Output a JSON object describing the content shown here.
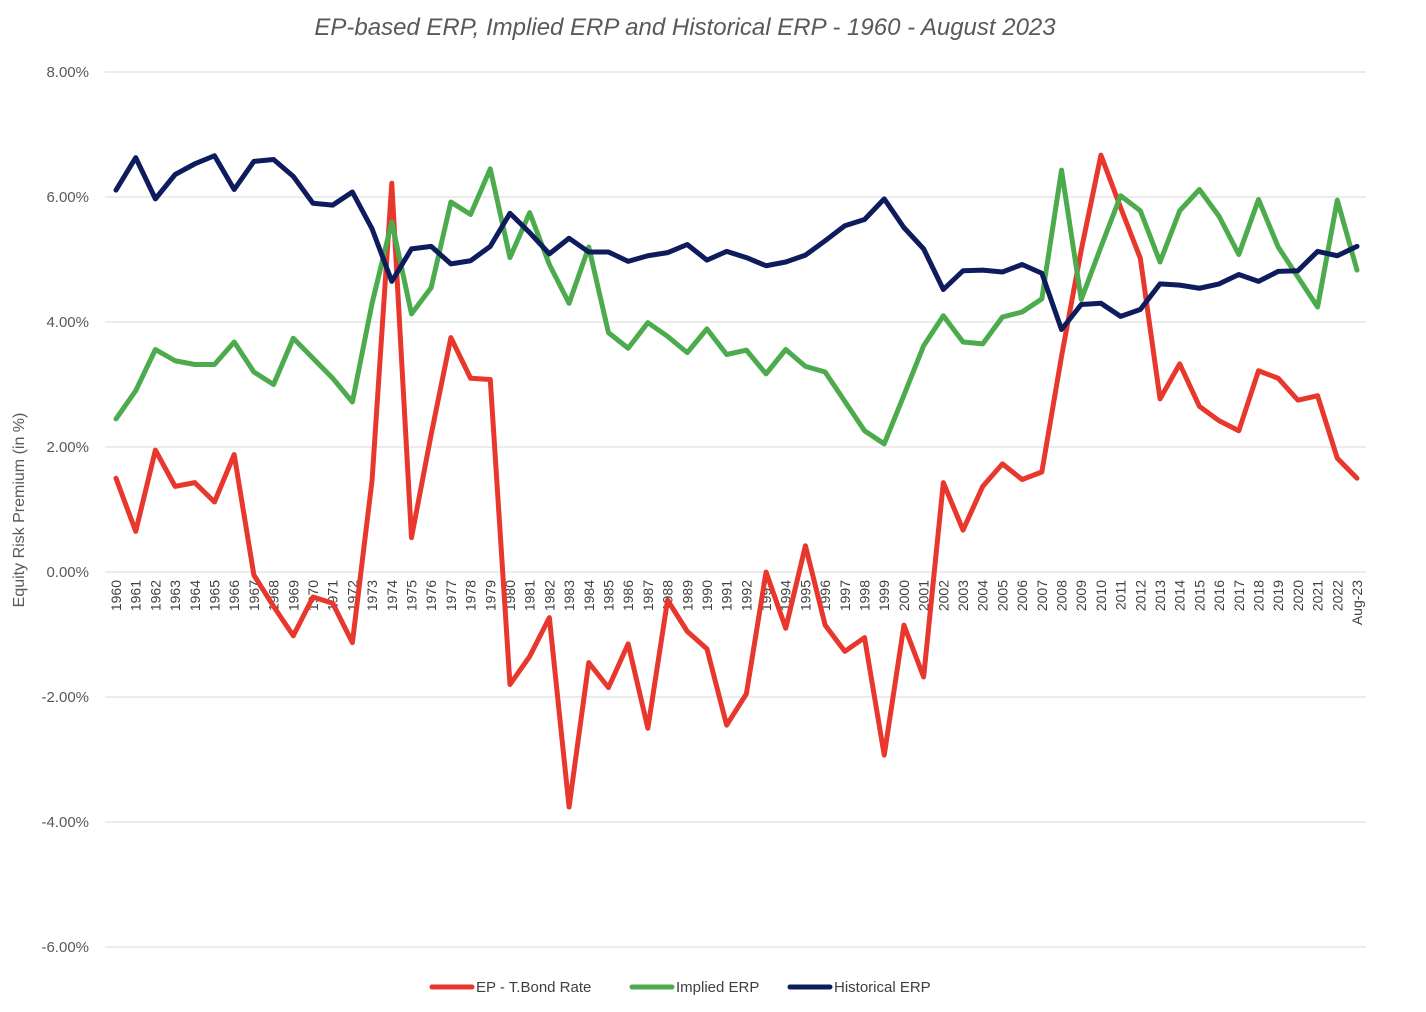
{
  "chart_data": {
    "type": "line",
    "title": "EP-based ERP, Implied ERP and Historical ERP - 1960 - August 2023",
    "ylabel": "Equity Risk Premium (in %)",
    "xlabel": "",
    "ylim": [
      -6,
      8
    ],
    "y_ticks": [
      -6,
      -4,
      -2,
      0,
      2,
      4,
      6,
      8
    ],
    "y_tick_labels": [
      "-6.00%",
      "-4.00%",
      "-2.00%",
      "0.00%",
      "2.00%",
      "4.00%",
      "6.00%",
      "8.00%"
    ],
    "grid": true,
    "legend_position": "bottom",
    "categories": [
      "1960",
      "1961",
      "1962",
      "1963",
      "1964",
      "1965",
      "1966",
      "1967",
      "1968",
      "1969",
      "1970",
      "1971",
      "1972",
      "1973",
      "1974",
      "1975",
      "1976",
      "1977",
      "1978",
      "1979",
      "1980",
      "1981",
      "1982",
      "1983",
      "1984",
      "1985",
      "1986",
      "1987",
      "1988",
      "1989",
      "1990",
      "1991",
      "1992",
      "1993",
      "1994",
      "1995",
      "1996",
      "1997",
      "1998",
      "1999",
      "2000",
      "2001",
      "2002",
      "2003",
      "2004",
      "2005",
      "2006",
      "2007",
      "2008",
      "2009",
      "2010",
      "2011",
      "2012",
      "2013",
      "2014",
      "2015",
      "2016",
      "2017",
      "2018",
      "2019",
      "2020",
      "2021",
      "2022",
      "Aug-23"
    ],
    "series": [
      {
        "name": "EP - T.Bond Rate",
        "color": "#e8372c",
        "values": [
          1.5,
          0.65,
          1.95,
          1.37,
          1.43,
          1.12,
          1.88,
          -0.05,
          -0.55,
          -1.02,
          -0.4,
          -0.5,
          -1.13,
          1.47,
          6.22,
          0.55,
          2.2,
          3.75,
          3.1,
          3.08,
          -1.8,
          -1.35,
          -0.73,
          -3.76,
          -1.45,
          -1.85,
          -1.15,
          -2.5,
          -0.45,
          -0.95,
          -1.23,
          -2.45,
          -1.95,
          0.0,
          -0.9,
          0.42,
          -0.85,
          -1.27,
          -1.05,
          -2.93,
          -0.85,
          -1.68,
          1.43,
          0.67,
          1.37,
          1.73,
          1.48,
          1.6,
          3.45,
          5.15,
          6.67,
          5.83,
          5.02,
          2.77,
          3.33,
          2.65,
          2.42,
          2.26,
          3.22,
          3.1,
          2.75,
          2.82,
          1.82,
          1.5
        ]
      },
      {
        "name": "Implied ERP",
        "color": "#4cab4c",
        "values": [
          2.45,
          2.9,
          3.56,
          3.38,
          3.32,
          3.32,
          3.68,
          3.2,
          3.0,
          3.74,
          3.42,
          3.1,
          2.72,
          4.3,
          5.6,
          4.13,
          4.55,
          5.92,
          5.72,
          6.45,
          5.03,
          5.75,
          4.92,
          4.3,
          5.2,
          3.83,
          3.58,
          3.99,
          3.77,
          3.51,
          3.89,
          3.48,
          3.55,
          3.17,
          3.56,
          3.29,
          3.2,
          2.73,
          2.26,
          2.05,
          2.83,
          3.62,
          4.1,
          3.68,
          3.65,
          4.08,
          4.16,
          4.37,
          6.43,
          4.36,
          5.2,
          6.02,
          5.78,
          4.96,
          5.78,
          6.12,
          5.69,
          5.08,
          5.96,
          5.2,
          4.72,
          4.24,
          5.95,
          4.83
        ]
      },
      {
        "name": "Historical ERP",
        "color": "#0e1c5e",
        "values": [
          6.11,
          6.63,
          5.97,
          6.36,
          6.53,
          6.66,
          6.12,
          6.57,
          6.6,
          6.33,
          5.9,
          5.87,
          6.08,
          5.49,
          4.65,
          5.17,
          5.21,
          4.93,
          4.98,
          5.21,
          5.74,
          5.43,
          5.09,
          5.34,
          5.12,
          5.12,
          4.97,
          5.06,
          5.11,
          5.24,
          4.99,
          5.13,
          5.03,
          4.9,
          4.96,
          5.07,
          5.3,
          5.54,
          5.64,
          5.97,
          5.51,
          5.17,
          4.52,
          4.82,
          4.83,
          4.8,
          4.92,
          4.78,
          3.88,
          4.28,
          4.3,
          4.09,
          4.2,
          4.61,
          4.59,
          4.54,
          4.61,
          4.76,
          4.65,
          4.81,
          4.82,
          5.13,
          5.06,
          5.21
        ]
      }
    ]
  }
}
